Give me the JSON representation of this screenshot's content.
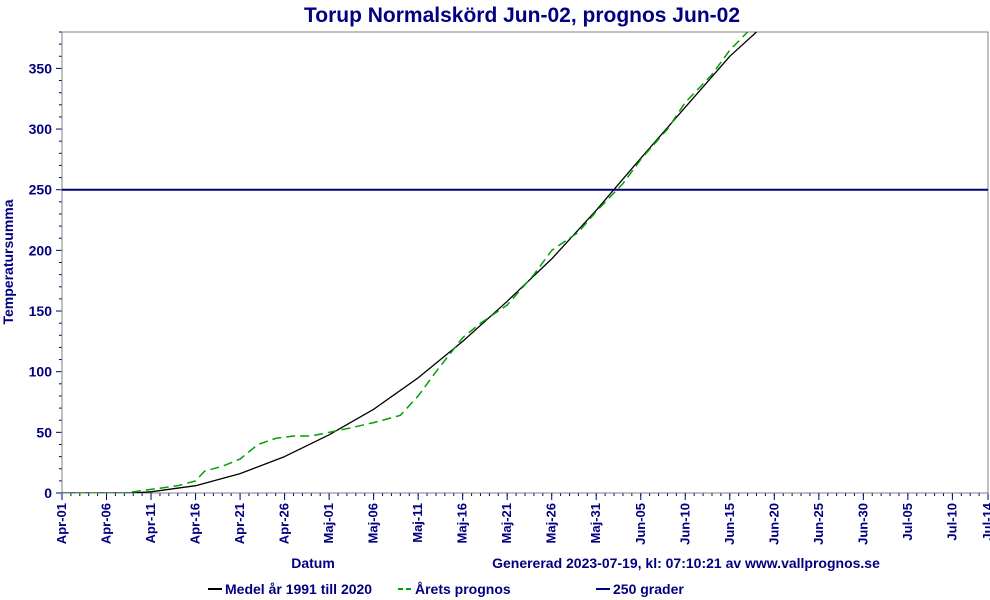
{
  "chart_data": {
    "type": "line",
    "title": "Torup Normalskörd Jun-02, prognos Jun-02",
    "xlabel": "Datum",
    "ylabel": "Temperatursumma",
    "footer": "Genererad 2023-07-19, kl: 07:10:21 av www.vallprognos.se",
    "ylim": [
      0,
      380
    ],
    "y_ticks": [
      "0",
      "50",
      "100",
      "150",
      "200",
      "250",
      "300",
      "350"
    ],
    "x_ticks": [
      "Apr-01",
      "Apr-06",
      "Apr-11",
      "Apr-16",
      "Apr-21",
      "Apr-26",
      "Maj-01",
      "Maj-06",
      "Maj-11",
      "Maj-16",
      "Maj-21",
      "Maj-26",
      "Maj-31",
      "Jun-05",
      "Jun-10",
      "Jun-15",
      "Jun-20",
      "Jun-25",
      "Jun-30",
      "Jul-05",
      "Jul-10",
      "Jul-14"
    ],
    "legend_position": "bottom",
    "colors": {
      "medel": "#000000",
      "prognos": "#00a000",
      "threshold": "#000080",
      "title": "#000080"
    },
    "series": [
      {
        "name": "Medel år 1991 till 2020",
        "line_style": "solid",
        "x": [
          "Apr-01",
          "Apr-06",
          "Apr-09",
          "Apr-11",
          "Apr-16",
          "Apr-21",
          "Apr-26",
          "Maj-01",
          "Maj-06",
          "Maj-11",
          "Maj-16",
          "Maj-21",
          "Maj-26",
          "Maj-31",
          "Jun-05",
          "Jun-10",
          "Jun-15",
          "Jun-18"
        ],
        "values": [
          0,
          0,
          0,
          1,
          6,
          16,
          30,
          48,
          69,
          95,
          125,
          158,
          193,
          233,
          276,
          318,
          360,
          380
        ]
      },
      {
        "name": "Årets prognos",
        "line_style": "dashed",
        "x": [
          "Apr-01",
          "Apr-06",
          "Apr-08",
          "Apr-11",
          "Apr-14",
          "Apr-16",
          "Apr-17",
          "Apr-19",
          "Apr-21",
          "Apr-23",
          "Apr-25",
          "Apr-27",
          "Apr-29",
          "Maj-01",
          "Maj-03",
          "Maj-06",
          "Maj-09",
          "Maj-11",
          "Maj-13",
          "Maj-16",
          "Maj-18",
          "Maj-21",
          "Maj-24",
          "Maj-26",
          "Maj-29",
          "Maj-31",
          "Jun-03",
          "Jun-05",
          "Jun-08",
          "Jun-10",
          "Jun-13",
          "Jun-15",
          "Jun-17"
        ],
        "values": [
          0,
          0,
          0,
          3,
          6,
          10,
          18,
          22,
          28,
          40,
          45,
          47,
          47,
          50,
          53,
          58,
          64,
          80,
          100,
          128,
          140,
          155,
          180,
          200,
          215,
          232,
          255,
          275,
          300,
          322,
          345,
          365,
          380
        ]
      },
      {
        "name": "250 grader",
        "line_style": "solid",
        "x": [
          "Apr-01",
          "Jul-14"
        ],
        "values": [
          250,
          250
        ]
      }
    ]
  }
}
